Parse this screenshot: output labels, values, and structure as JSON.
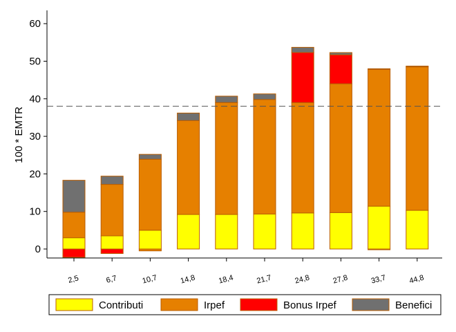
{
  "chart_data": {
    "type": "bar",
    "stacked": true,
    "ylabel": "100 * EMTR",
    "xlabel": "",
    "ylim": [
      -3,
      62
    ],
    "yticks": [
      0,
      10,
      20,
      30,
      40,
      50,
      60
    ],
    "grid": false,
    "reference_line": {
      "y": 38,
      "style": "dashed"
    },
    "legend_position": "bottom",
    "categories": [
      "2,5",
      "6,7",
      "10,7",
      "14,8",
      "18,4",
      "21,7",
      "24,8",
      "27,8",
      "33,7",
      "44,8"
    ],
    "series": [
      {
        "name": "Contributi",
        "color": "#ffff00",
        "values": [
          3.0,
          3.5,
          5.0,
          9.2,
          9.2,
          9.3,
          9.6,
          9.7,
          11.4,
          10.3
        ]
      },
      {
        "name": "Irpef",
        "color": "#e68000",
        "values": [
          6.8,
          13.7,
          18.9,
          25.0,
          29.8,
          30.5,
          29.4,
          34.3,
          36.4,
          38.2
        ]
      },
      {
        "name": "Bonus Irpef",
        "color": "#ff0000",
        "values": [
          -2.2,
          -1.2,
          0.0,
          0.0,
          0.0,
          0.0,
          13.3,
          7.7,
          0.0,
          0.0
        ]
      },
      {
        "name": "Benefici",
        "color": "#707070",
        "values": [
          8.5,
          2.2,
          1.3,
          2.0,
          1.7,
          1.5,
          1.4,
          0.6,
          0.2,
          0.2
        ]
      }
    ],
    "bar_outline_color": "#b85c00",
    "negative_segments": {
      "Irpef": [
        0,
        0,
        -0.5,
        0,
        0,
        0,
        0,
        0,
        -0.2,
        0
      ]
    }
  }
}
